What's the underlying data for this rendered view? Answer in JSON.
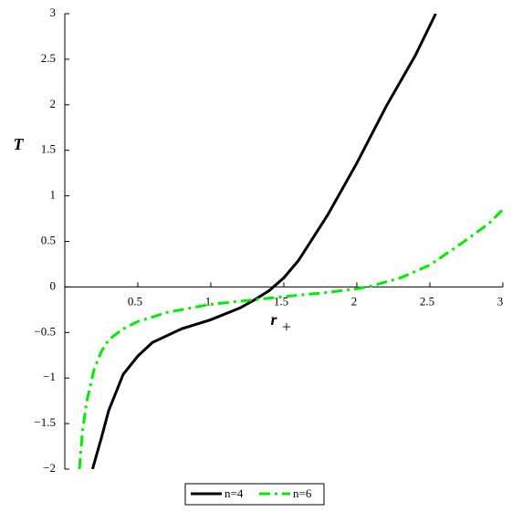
{
  "chart_data": {
    "type": "line",
    "ylabel": "T",
    "xlabel": "r",
    "xlabel_sub": "+",
    "xlim": [
      0,
      3
    ],
    "ylim": [
      -2,
      3
    ],
    "xticks": [
      0.5,
      1,
      1.5,
      2,
      2.5,
      3
    ],
    "yticks": [
      {
        "value": -2,
        "label": "−2"
      },
      {
        "value": -1.5,
        "label": "−1.5"
      },
      {
        "value": -1,
        "label": "−1"
      },
      {
        "value": -0.5,
        "label": "−0.5"
      },
      0,
      0.5,
      1,
      1.5,
      2,
      2.5,
      3
    ],
    "legend": "bottom",
    "series": [
      {
        "name": "n=4",
        "color": "#000000",
        "dash": "solid",
        "x": [
          0.19,
          0.25,
          0.3,
          0.4,
          0.5,
          0.6,
          0.8,
          1.0,
          1.2,
          1.3,
          1.4,
          1.5,
          1.6,
          1.8,
          2.0,
          2.2,
          2.4,
          2.54
        ],
        "values": [
          -2,
          -1.66,
          -1.36,
          -0.96,
          -0.76,
          -0.61,
          -0.46,
          -0.36,
          -0.23,
          -0.14,
          -0.04,
          0.1,
          0.29,
          0.79,
          1.36,
          1.98,
          2.54,
          3
        ]
      },
      {
        "name": "n=6",
        "color": "#00ee00",
        "dash": "dashdot",
        "x": [
          0.1,
          0.12,
          0.15,
          0.2,
          0.25,
          0.3,
          0.4,
          0.5,
          0.7,
          1.0,
          1.3,
          1.6,
          1.8,
          2.0,
          2.1,
          2.3,
          2.5,
          2.7,
          2.9,
          3.0
        ],
        "values": [
          -2,
          -1.6,
          -1.26,
          -0.91,
          -0.71,
          -0.58,
          -0.46,
          -0.38,
          -0.28,
          -0.19,
          -0.14,
          -0.09,
          -0.06,
          -0.02,
          0.01,
          0.1,
          0.24,
          0.46,
          0.69,
          0.85
        ]
      }
    ]
  }
}
